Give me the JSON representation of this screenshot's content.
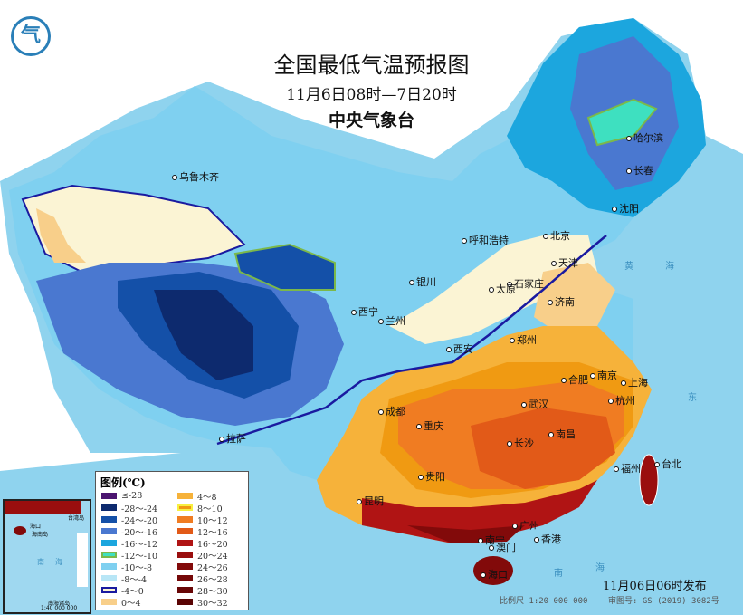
{
  "header": {
    "title": "全国最低气温预报图",
    "period": "11月6日08时—7日20时",
    "issuer": "中央气象台",
    "logo_icon": "cma-logo"
  },
  "legend": {
    "title": "图例(℃)",
    "items": [
      {
        "label": "≤-28",
        "color": "#4b1570"
      },
      {
        "label": "-28～-24",
        "color": "#0d2a6e"
      },
      {
        "label": "-24～-20",
        "color": "#1450a8"
      },
      {
        "label": "-20～-16",
        "color": "#4a78d0"
      },
      {
        "label": "-16～-12",
        "color": "#1ca6de"
      },
      {
        "label": "-12～-10",
        "color": "#3ee0c0",
        "border": "#7bb84a"
      },
      {
        "label": "-10～-8",
        "color": "#7fd0f0"
      },
      {
        "label": "-8～-4",
        "color": "#b8e6f6"
      },
      {
        "label": "-4～0",
        "color": "#fbf4d4",
        "border": "#1a1aa0"
      },
      {
        "label": "0～4",
        "color": "#f8cf8a"
      },
      {
        "label": "4～8",
        "color": "#f6b23a"
      },
      {
        "label": "8～10",
        "color": "#f09a12",
        "border": "#f8f040"
      },
      {
        "label": "10～12",
        "color": "#f07c22"
      },
      {
        "label": "12～16",
        "color": "#e25a18"
      },
      {
        "label": "16～20",
        "color": "#b01414"
      },
      {
        "label": "20～24",
        "color": "#9a0e0e"
      },
      {
        "label": "24～26",
        "color": "#820a0a"
      },
      {
        "label": "26～28",
        "color": "#740808"
      },
      {
        "label": "28～30",
        "color": "#680606"
      },
      {
        "label": "30～32",
        "color": "#5a0404"
      }
    ]
  },
  "cities": [
    {
      "name": "乌鲁木齐"
    },
    {
      "name": "哈尔滨"
    },
    {
      "name": "长春"
    },
    {
      "name": "沈阳"
    },
    {
      "name": "北京"
    },
    {
      "name": "天津"
    },
    {
      "name": "呼和浩特"
    },
    {
      "name": "石家庄"
    },
    {
      "name": "太原"
    },
    {
      "name": "济南"
    },
    {
      "name": "银川"
    },
    {
      "name": "西宁"
    },
    {
      "name": "兰州"
    },
    {
      "name": "郑州"
    },
    {
      "name": "西安"
    },
    {
      "name": "合肥"
    },
    {
      "name": "南京"
    },
    {
      "name": "上海"
    },
    {
      "name": "杭州"
    },
    {
      "name": "武汉"
    },
    {
      "name": "成都"
    },
    {
      "name": "重庆"
    },
    {
      "name": "拉萨"
    },
    {
      "name": "长沙"
    },
    {
      "name": "南昌"
    },
    {
      "name": "福州"
    },
    {
      "name": "台北"
    },
    {
      "name": "贵阳"
    },
    {
      "name": "昆明"
    },
    {
      "name": "广州"
    },
    {
      "name": "南宁"
    },
    {
      "name": "澳门"
    },
    {
      "name": "香港"
    },
    {
      "name": "海口"
    }
  ],
  "seas": {
    "huang": "黄",
    "hai": "海",
    "dong": "东",
    "nan": "南",
    "nan_hai": "海"
  },
  "inset": {
    "labels": [
      "海口",
      "海南岛",
      "台湾岛",
      "南",
      "海",
      "南海诸岛"
    ],
    "scale": "1:40 000 000"
  },
  "footer": {
    "published": "11月06日06时发布",
    "scale": "比例尺 1:20 000 000",
    "review_no": "审图号: GS (2019) 3082号"
  }
}
